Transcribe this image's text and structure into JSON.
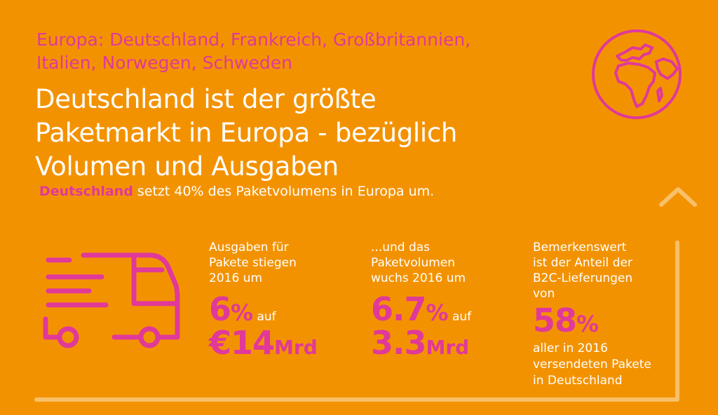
{
  "region_line1": "Europa: Deutschland, Frankreich, Großbritannien,",
  "region_line2": "Italien, Norwegen, Schweden",
  "headline": {
    "line1": "Deutschland ist der größte",
    "line2": "Paketmarkt in Europa - bezüglich",
    "line3": "Volumen und Ausgaben"
  },
  "subline": {
    "highlight": "Deutschland",
    "rest": " setzt 40% des Paketvolumens in Europa um."
  },
  "stat1": {
    "lead1": "Ausgaben für",
    "lead2": "Pakete stiegen",
    "lead3": "2016 um",
    "value": "6",
    "pct": "%",
    "connector": " auf",
    "amount": "€14",
    "unit": "Mrd"
  },
  "stat2": {
    "lead1": "...und das",
    "lead2": "Paketvolumen",
    "lead3": "wuchs 2016 um",
    "value": "6.7",
    "pct": "%",
    "connector": " auf",
    "amount": "3.3",
    "unit": "Mrd"
  },
  "stat3": {
    "lead1": "Bemerkenswert",
    "lead2": "ist der Anteil der",
    "lead3": "B2C-Lieferungen",
    "lead4": "von",
    "value": "58",
    "pct": "%",
    "tail1": "aller in 2016",
    "tail2": "versendeten Pakete",
    "tail3": "in Deutschland"
  },
  "icons": {
    "globe": "globe-icon",
    "truck": "delivery-truck-icon",
    "chevron": "chevron-up-icon"
  },
  "colors": {
    "background": "#f39200",
    "accent": "#e0399a",
    "text": "#ffffff",
    "line": "#f8c06a"
  }
}
